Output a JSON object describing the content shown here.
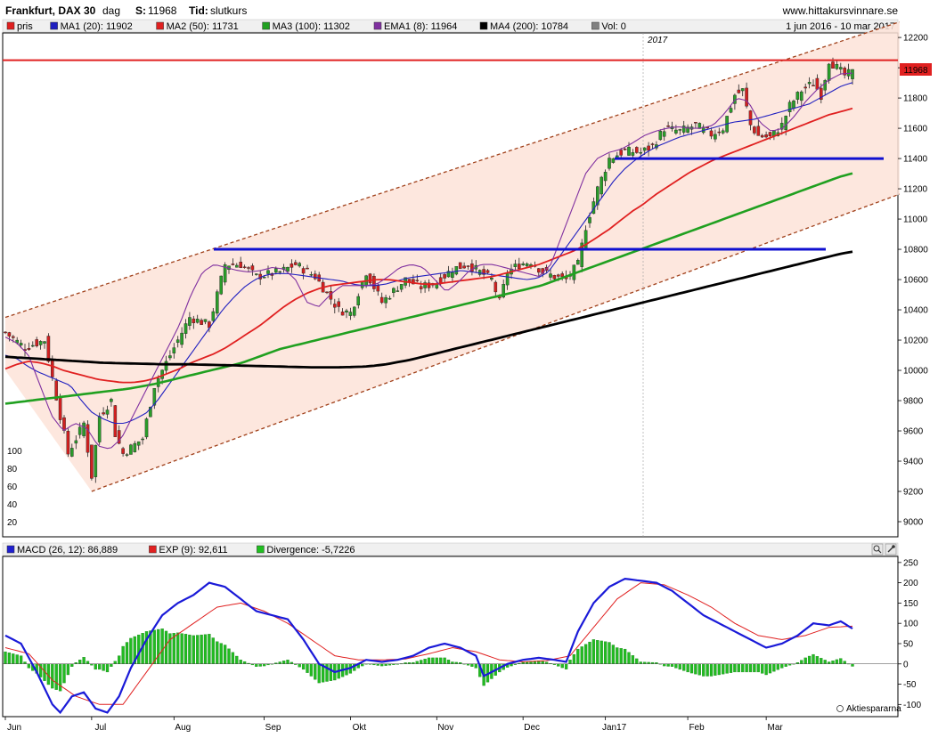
{
  "header": {
    "instrument": "Frankfurt, DAX 30",
    "period": "dag",
    "s_label": "S:",
    "s_value": "11968",
    "tid_label": "Tid:",
    "tid_value": "slutkurs",
    "site": "www.hittakursvinnare.se",
    "range": "1 jun 2016 - 10 mar 2017"
  },
  "legend_top": [
    {
      "label": "pris",
      "color": "#e02020"
    },
    {
      "label": "MA1 (20): 11902",
      "color": "#2020c0"
    },
    {
      "label": "MA2 (50): 11731",
      "color": "#e02020"
    },
    {
      "label": "MA3 (100): 11302",
      "color": "#20a020"
    },
    {
      "label": "EMA1 (8): 11964",
      "color": "#8030a0"
    },
    {
      "label": "MA4 (200): 10784",
      "color": "#000000"
    },
    {
      "label": "Vol: 0",
      "color": "#808080"
    }
  ],
  "legend_macd": [
    {
      "label": "MACD (26, 12): 86,889",
      "color": "#2020d0"
    },
    {
      "label": "EXP (9): 92,611",
      "color": "#e02020"
    },
    {
      "label": "Divergence: -5,7226",
      "color": "#20c020"
    }
  ],
  "year_label": "2017",
  "last_price_label": "11968",
  "volume_ticks": [
    "100",
    "80",
    "60",
    "40",
    "20"
  ],
  "watermark": "Aktiespararna",
  "chart_data": [
    {
      "type": "candlestick",
      "title": "Frankfurt, DAX 30",
      "x_ticks": [
        "Jun",
        "Jul",
        "Aug",
        "Sep",
        "Okt",
        "Nov",
        "Dec",
        "Jan17",
        "Feb",
        "Mar"
      ],
      "y_ticks": [
        9000,
        9200,
        9400,
        9600,
        9800,
        10000,
        10200,
        10400,
        10600,
        10800,
        11000,
        11200,
        11400,
        11600,
        11800,
        12000,
        12200
      ],
      "ylim": [
        8900,
        12230
      ],
      "close_anchors": [
        [
          0,
          10250
        ],
        [
          5,
          10150
        ],
        [
          10,
          10200
        ],
        [
          16,
          9450
        ],
        [
          20,
          9650
        ],
        [
          22,
          9300
        ],
        [
          24,
          9700
        ],
        [
          27,
          9800
        ],
        [
          28,
          9580
        ],
        [
          30,
          9450
        ],
        [
          35,
          9550
        ],
        [
          38,
          9900
        ],
        [
          42,
          10100
        ],
        [
          47,
          10350
        ],
        [
          52,
          10300
        ],
        [
          56,
          10700
        ],
        [
          60,
          10700
        ],
        [
          64,
          10620
        ],
        [
          70,
          10650
        ],
        [
          74,
          10700
        ],
        [
          79,
          10620
        ],
        [
          85,
          10400
        ],
        [
          88,
          10380
        ],
        [
          92,
          10650
        ],
        [
          96,
          10450
        ],
        [
          102,
          10600
        ],
        [
          106,
          10550
        ],
        [
          110,
          10580
        ],
        [
          114,
          10670
        ],
        [
          118,
          10700
        ],
        [
          121,
          10650
        ],
        [
          124,
          10600
        ],
        [
          126,
          10450
        ],
        [
          128,
          10650
        ],
        [
          131,
          10700
        ],
        [
          134,
          10720
        ],
        [
          137,
          10650
        ],
        [
          140,
          10620
        ],
        [
          143,
          10600
        ],
        [
          146,
          10700
        ],
        [
          148,
          10950
        ],
        [
          151,
          11200
        ],
        [
          154,
          11400
        ],
        [
          158,
          11450
        ],
        [
          162,
          11440
        ],
        [
          165,
          11480
        ],
        [
          168,
          11600
        ],
        [
          172,
          11580
        ],
        [
          176,
          11620
        ],
        [
          180,
          11560
        ],
        [
          183,
          11600
        ],
        [
          186,
          11820
        ],
        [
          188,
          11850
        ],
        [
          190,
          11620
        ],
        [
          192,
          11550
        ],
        [
          195,
          11540
        ],
        [
          198,
          11620
        ],
        [
          200,
          11750
        ],
        [
          203,
          11850
        ],
        [
          206,
          11900
        ],
        [
          208,
          11820
        ],
        [
          210,
          12050
        ],
        [
          212,
          12000
        ],
        [
          214,
          11950
        ],
        [
          216,
          11968
        ]
      ],
      "moving_averages": [
        {
          "name": "MA1 (20)",
          "color": "#2020c0",
          "values": [
            10100,
            10080,
            10030,
            9990,
            9960,
            9930,
            9900,
            9800,
            9720,
            9680,
            9650,
            9650,
            9680,
            9720,
            9800,
            9900,
            10000,
            10100,
            10200,
            10300,
            10400,
            10480,
            10550,
            10600,
            10630,
            10640,
            10640,
            10630,
            10620,
            10610,
            10600,
            10590,
            10570,
            10560,
            10560,
            10570,
            10590,
            10610,
            10620,
            10630,
            10640,
            10650,
            10660,
            10650,
            10640,
            10630,
            10620,
            10610,
            10600,
            10610,
            10650,
            10750,
            10850,
            10950,
            11050,
            11150,
            11250,
            11330,
            11390,
            11440,
            11480,
            11510,
            11540,
            11560,
            11580,
            11600,
            11620,
            11640,
            11650,
            11660,
            11680,
            11700,
            11720,
            11740,
            11760,
            11800,
            11840,
            11880,
            11902
          ]
        },
        {
          "name": "MA2 (50)",
          "color": "#e02020",
          "values": [
            10010,
            10040,
            10060,
            10050,
            10030,
            10000,
            9980,
            9960,
            9940,
            9930,
            9920,
            9920,
            9930,
            9950,
            9980,
            10010,
            10050,
            10080,
            10110,
            10150,
            10200,
            10250,
            10300,
            10360,
            10420,
            10470,
            10510,
            10540,
            10560,
            10570,
            10580,
            10590,
            10600,
            10600,
            10590,
            10580,
            10570,
            10570,
            10580,
            10590,
            10600,
            10610,
            10620,
            10640,
            10660,
            10680,
            10700,
            10730,
            10760,
            10790,
            10830,
            10880,
            10930,
            10990,
            11050,
            11100,
            11160,
            11210,
            11260,
            11310,
            11350,
            11390,
            11420,
            11450,
            11480,
            11510,
            11540,
            11570,
            11600,
            11630,
            11660,
            11690,
            11710,
            11731
          ]
        },
        {
          "name": "MA3 (100)",
          "color": "#20a020",
          "values": [
            9780,
            9790,
            9800,
            9810,
            9820,
            9830,
            9840,
            9850,
            9860,
            9870,
            9880,
            9895,
            9910,
            9930,
            9950,
            9970,
            9990,
            10010,
            10030,
            10050,
            10080,
            10110,
            10140,
            10160,
            10180,
            10200,
            10220,
            10240,
            10260,
            10280,
            10300,
            10320,
            10340,
            10360,
            10380,
            10400,
            10420,
            10440,
            10460,
            10480,
            10500,
            10520,
            10540,
            10560,
            10590,
            10620,
            10650,
            10680,
            10710,
            10740,
            10770,
            10800,
            10830,
            10860,
            10890,
            10920,
            10950,
            10980,
            11010,
            11040,
            11070,
            11100,
            11130,
            11160,
            11190,
            11220,
            11250,
            11280,
            11302
          ]
        },
        {
          "name": "EMA1 (8)",
          "color": "#8030a0",
          "values": [
            10220,
            10180,
            10100,
            9900,
            9700,
            9600,
            9650,
            9620,
            9500,
            9480,
            9550,
            9700,
            9850,
            10000,
            10150,
            10300,
            10500,
            10650,
            10700,
            10680,
            10660,
            10650,
            10660,
            10680,
            10670,
            10600,
            10450,
            10420,
            10500,
            10560,
            10560,
            10560,
            10570,
            10620,
            10680,
            10700,
            10680,
            10600,
            10520,
            10580,
            10660,
            10700,
            10700,
            10680,
            10660,
            10640,
            10620,
            10700,
            10900,
            11100,
            11300,
            11400,
            11440,
            11460,
            11500,
            11550,
            11580,
            11600,
            11610,
            11600,
            11600,
            11620,
            11700,
            11800,
            11780,
            11640,
            11580,
            11600,
            11680,
            11780,
            11860,
            11920,
            11960,
            11964
          ]
        },
        {
          "name": "MA4 (200)",
          "color": "#000000",
          "values": [
            10090,
            10085,
            10080,
            10075,
            10070,
            10065,
            10060,
            10055,
            10050,
            10048,
            10046,
            10044,
            10042,
            10040,
            10040,
            10040,
            10038,
            10036,
            10034,
            10032,
            10030,
            10028,
            10026,
            10024,
            10022,
            10020,
            10020,
            10020,
            10022,
            10024,
            10030,
            10040,
            10055,
            10070,
            10090,
            10110,
            10130,
            10150,
            10170,
            10190,
            10210,
            10230,
            10250,
            10270,
            10290,
            10310,
            10330,
            10350,
            10370,
            10390,
            10410,
            10430,
            10450,
            10470,
            10490,
            10510,
            10530,
            10550,
            10570,
            10590,
            10610,
            10630,
            10650,
            10670,
            10690,
            10710,
            10730,
            10750,
            10770,
            10784
          ]
        }
      ],
      "horizontal_lines": [
        {
          "value": 12050,
          "color": "#e02020"
        },
        {
          "value": 11400,
          "color": "#1010d0"
        },
        {
          "value": 10800,
          "color": "#1010d0"
        }
      ],
      "channel": {
        "upper": [
          [
            0,
            10350
          ],
          [
            216,
            12200
          ]
        ],
        "lower": [
          [
            22,
            9200
          ],
          [
            216,
            11050
          ]
        ]
      }
    },
    {
      "type": "macd",
      "y_ticks": [
        -100,
        -50,
        0,
        50,
        100,
        150,
        200,
        250
      ],
      "ylim": [
        -130,
        265
      ],
      "macd_anchors": [
        [
          0,
          70
        ],
        [
          4,
          50
        ],
        [
          8,
          -20
        ],
        [
          12,
          -100
        ],
        [
          14,
          -120
        ],
        [
          17,
          -80
        ],
        [
          20,
          -70
        ],
        [
          23,
          -110
        ],
        [
          26,
          -120
        ],
        [
          29,
          -80
        ],
        [
          32,
          -10
        ],
        [
          36,
          60
        ],
        [
          40,
          120
        ],
        [
          44,
          150
        ],
        [
          48,
          170
        ],
        [
          52,
          200
        ],
        [
          56,
          190
        ],
        [
          60,
          160
        ],
        [
          64,
          130
        ],
        [
          68,
          120
        ],
        [
          72,
          110
        ],
        [
          76,
          60
        ],
        [
          80,
          0
        ],
        [
          84,
          -20
        ],
        [
          88,
          -10
        ],
        [
          92,
          10
        ],
        [
          96,
          5
        ],
        [
          100,
          10
        ],
        [
          104,
          20
        ],
        [
          108,
          40
        ],
        [
          112,
          50
        ],
        [
          116,
          40
        ],
        [
          120,
          20
        ],
        [
          122,
          -30
        ],
        [
          124,
          -20
        ],
        [
          128,
          0
        ],
        [
          132,
          10
        ],
        [
          136,
          15
        ],
        [
          140,
          10
        ],
        [
          143,
          5
        ],
        [
          146,
          80
        ],
        [
          150,
          150
        ],
        [
          154,
          190
        ],
        [
          158,
          210
        ],
        [
          162,
          205
        ],
        [
          166,
          200
        ],
        [
          170,
          180
        ],
        [
          174,
          150
        ],
        [
          178,
          120
        ],
        [
          182,
          100
        ],
        [
          186,
          80
        ],
        [
          190,
          60
        ],
        [
          194,
          40
        ],
        [
          198,
          50
        ],
        [
          202,
          70
        ],
        [
          206,
          100
        ],
        [
          210,
          95
        ],
        [
          213,
          105
        ],
        [
          216,
          87
        ]
      ],
      "signal_anchors": [
        [
          0,
          40
        ],
        [
          6,
          25
        ],
        [
          12,
          -40
        ],
        [
          18,
          -80
        ],
        [
          24,
          -100
        ],
        [
          30,
          -100
        ],
        [
          36,
          -20
        ],
        [
          42,
          60
        ],
        [
          48,
          100
        ],
        [
          54,
          140
        ],
        [
          60,
          150
        ],
        [
          66,
          130
        ],
        [
          72,
          100
        ],
        [
          78,
          60
        ],
        [
          84,
          20
        ],
        [
          90,
          10
        ],
        [
          96,
          10
        ],
        [
          102,
          12
        ],
        [
          108,
          25
        ],
        [
          114,
          40
        ],
        [
          120,
          30
        ],
        [
          126,
          10
        ],
        [
          132,
          5
        ],
        [
          138,
          8
        ],
        [
          144,
          20
        ],
        [
          150,
          90
        ],
        [
          156,
          160
        ],
        [
          162,
          200
        ],
        [
          168,
          195
        ],
        [
          174,
          170
        ],
        [
          180,
          140
        ],
        [
          186,
          100
        ],
        [
          192,
          70
        ],
        [
          198,
          60
        ],
        [
          204,
          70
        ],
        [
          210,
          90
        ],
        [
          216,
          93
        ]
      ]
    }
  ]
}
